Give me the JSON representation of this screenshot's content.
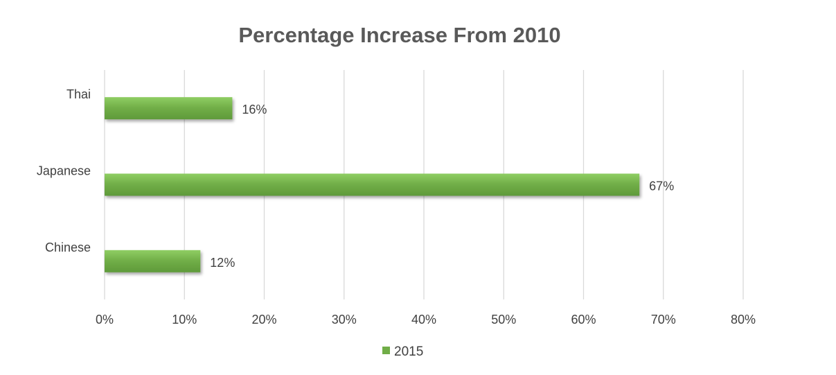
{
  "chart_data": {
    "type": "bar",
    "orientation": "horizontal",
    "title": "Percentage Increase From 2010",
    "categories": [
      "Thai",
      "Japanese",
      "Chinese"
    ],
    "series": [
      {
        "name": "2015",
        "values": [
          16,
          67,
          12
        ],
        "labels": [
          "16%",
          "67%",
          "12%"
        ],
        "color": "#70ad47"
      }
    ],
    "xlim": [
      0,
      80
    ],
    "x_ticks": [
      "0%",
      "10%",
      "20%",
      "30%",
      "40%",
      "50%",
      "60%",
      "70%",
      "80%"
    ],
    "grid": true,
    "legend_position": "bottom"
  }
}
